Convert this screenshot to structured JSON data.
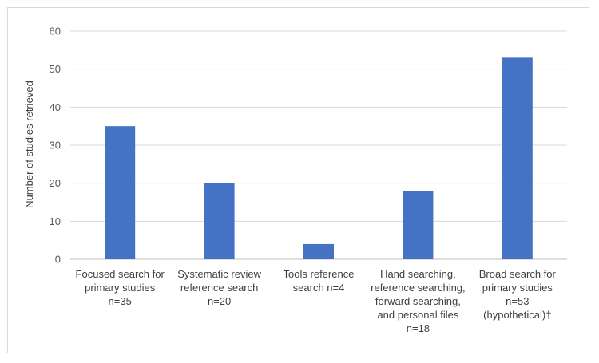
{
  "chart_data": {
    "type": "bar",
    "title": "",
    "xlabel": "",
    "ylabel": "Number of studies retrieved",
    "ylim": [
      0,
      60
    ],
    "yticks": [
      0,
      10,
      20,
      30,
      40,
      50,
      60
    ],
    "grid": true,
    "categories": [
      [
        "Focused search for",
        "primary studies",
        "n=35"
      ],
      [
        "Systematic review",
        "reference search",
        "n=20"
      ],
      [
        "Tools reference",
        "search n=4"
      ],
      [
        "Hand searching,",
        "reference searching,",
        "forward searching,",
        "and personal files",
        "n=18"
      ],
      [
        "Broad search for",
        "primary studies",
        "n=53",
        "(hypothetical)†"
      ]
    ],
    "values": [
      35,
      20,
      4,
      18,
      53
    ],
    "colors": {
      "bar": "#4472c4",
      "grid": "#d9d9d9",
      "axis": "#bfbfbf"
    }
  }
}
